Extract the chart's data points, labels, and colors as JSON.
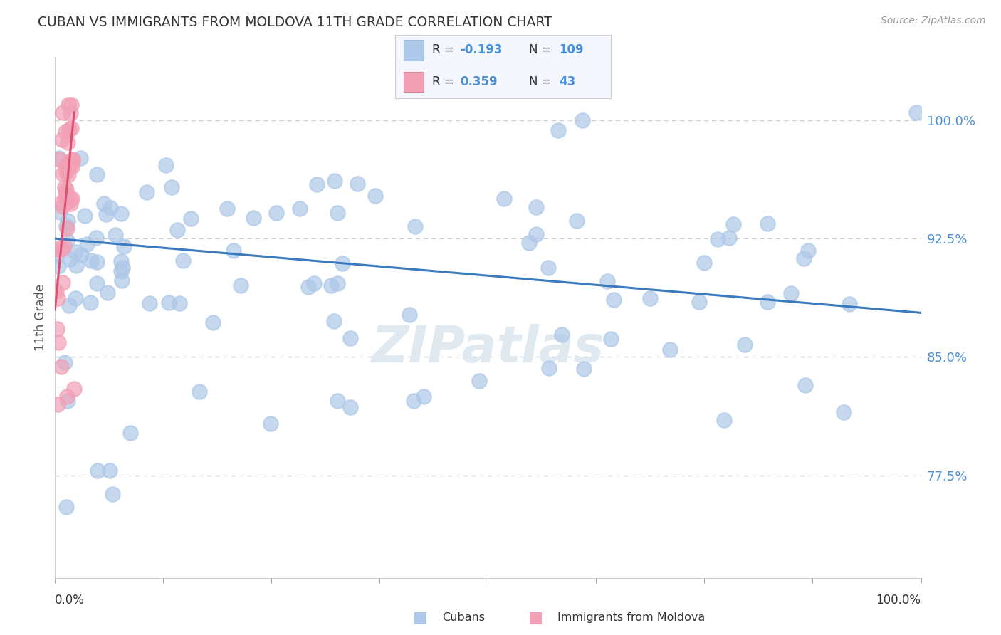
{
  "title": "CUBAN VS IMMIGRANTS FROM MOLDOVA 11TH GRADE CORRELATION CHART",
  "source": "Source: ZipAtlas.com",
  "ylabel": "11th Grade",
  "yaxis_labels": [
    "77.5%",
    "85.0%",
    "92.5%",
    "100.0%"
  ],
  "yaxis_values": [
    0.775,
    0.85,
    0.925,
    1.0
  ],
  "xaxis_range": [
    0.0,
    1.0
  ],
  "yaxis_range": [
    0.71,
    1.04
  ],
  "cubans_color": "#adc8e8",
  "moldova_color": "#f2a0b5",
  "cubans_line_color": "#3a7bbf",
  "moldova_line_color": "#d95070",
  "title_color": "#333333",
  "tick_color": "#4a90d9",
  "ylabel_color": "#555555",
  "grid_color": "#cccccc",
  "source_color": "#999999",
  "watermark_color": "#e0e8f0",
  "cubans_trend_x0": 0.0,
  "cubans_trend_x1": 1.0,
  "cubans_trend_y0": 0.925,
  "cubans_trend_y1": 0.878,
  "moldova_trend_x0": 0.0,
  "moldova_trend_x1": 0.022,
  "moldova_trend_y0": 0.88,
  "moldova_trend_y1": 1.005
}
